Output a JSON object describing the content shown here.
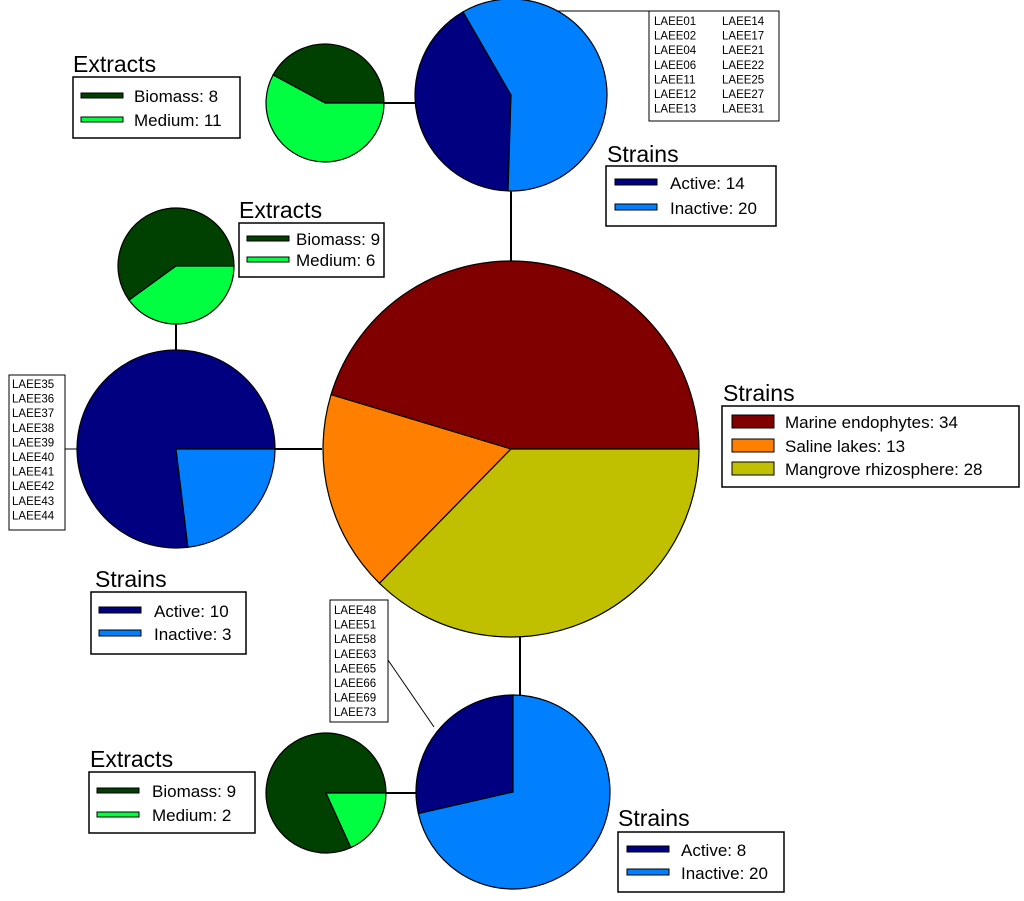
{
  "chart_data": {
    "type": "pie",
    "colors": {
      "marine": "#800000",
      "saline": "#ff8000",
      "mangrove": "#c0c000",
      "active": "#000080",
      "inactive": "#0080ff",
      "biomass": "#004000",
      "medium": "#00ff40"
    },
    "main": {
      "title": "Strains",
      "slices": [
        {
          "label": "Marine endophytes: 34",
          "value": 34,
          "color": "#800000"
        },
        {
          "label": "Saline lakes: 13",
          "value": 13,
          "color": "#ff8000"
        },
        {
          "label": "Mangrove rhizosphere: 28",
          "value": 28,
          "color": "#c0c000"
        }
      ]
    },
    "groups": [
      {
        "name": "marine",
        "strains": {
          "title": "Strains",
          "slices": [
            {
              "label": "Active: 14",
              "value": 14,
              "color": "#000080"
            },
            {
              "label": "Inactive: 20",
              "value": 20,
              "color": "#0080ff"
            }
          ]
        },
        "extracts": {
          "title": "Extracts",
          "slices": [
            {
              "label": "Biomass: 8",
              "value": 8,
              "color": "#004000"
            },
            {
              "label": "Medium: 11",
              "value": 11,
              "color": "#00ff40"
            }
          ]
        },
        "active_ids": [
          "LAEE01",
          "LAEE02",
          "LAEE04",
          "LAEE06",
          "LAEE11",
          "LAEE12",
          "LAEE13",
          "LAEE14",
          "LAEE17",
          "LAEE21",
          "LAEE22",
          "LAEE25",
          "LAEE27",
          "LAEE31"
        ]
      },
      {
        "name": "saline",
        "strains": {
          "title": "Strains",
          "slices": [
            {
              "label": "Active: 10",
              "value": 10,
              "color": "#000080"
            },
            {
              "label": "Inactive: 3",
              "value": 3,
              "color": "#0080ff"
            }
          ]
        },
        "extracts": {
          "title": "Extracts",
          "slices": [
            {
              "label": "Biomass: 9",
              "value": 9,
              "color": "#004000"
            },
            {
              "label": "Medium: 6",
              "value": 6,
              "color": "#00ff40"
            }
          ]
        },
        "active_ids": [
          "LAEE35",
          "LAEE36",
          "LAEE37",
          "LAEE38",
          "LAEE39",
          "LAEE40",
          "LAEE41",
          "LAEE42",
          "LAEE43",
          "LAEE44"
        ]
      },
      {
        "name": "mangrove",
        "strains": {
          "title": "Strains",
          "slices": [
            {
              "label": "Active: 8",
              "value": 8,
              "color": "#000080"
            },
            {
              "label": "Inactive: 20",
              "value": 20,
              "color": "#0080ff"
            }
          ]
        },
        "extracts": {
          "title": "Extracts",
          "slices": [
            {
              "label": "Biomass: 9",
              "value": 9,
              "color": "#004000"
            },
            {
              "label": "Medium: 2",
              "value": 2,
              "color": "#00ff40"
            }
          ]
        },
        "active_ids": [
          "LAEE48",
          "LAEE51",
          "LAEE58",
          "LAEE63",
          "LAEE65",
          "LAEE66",
          "LAEE69",
          "LAEE73"
        ]
      }
    ]
  }
}
